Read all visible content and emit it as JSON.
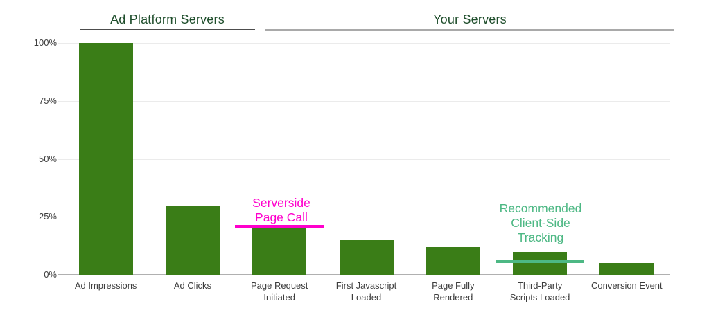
{
  "chart_data": {
    "type": "bar",
    "title": "",
    "unit": "%",
    "groups": [
      {
        "label": "Ad Platform Servers",
        "bar_indexes": [
          0,
          1
        ]
      },
      {
        "label": "Your Servers",
        "bar_indexes": [
          2,
          3,
          4,
          5,
          6
        ]
      }
    ],
    "categories": [
      "Ad Impressions",
      "Ad Clicks",
      "Page Request\nInitiated",
      "First Javascript\nLoaded",
      "Page Fully\nRendered",
      "Third-Party\nScripts Loaded",
      "Conversion Event"
    ],
    "values": [
      100,
      30,
      20,
      15,
      12,
      10,
      5
    ],
    "ylim": [
      0,
      100
    ],
    "yticks": [
      0,
      25,
      50,
      75,
      100
    ],
    "ytick_labels": [
      "0%",
      "25%",
      "50%",
      "75%",
      "100%"
    ],
    "grid": true,
    "legend": "none",
    "bar_color": "#3a7d17",
    "annotations": [
      {
        "text": "Serverside\nPage Call",
        "color": "#ff00cc",
        "line_value_pct": 20.8,
        "bar_index": 2,
        "line_half_width": 64
      },
      {
        "text": "Recommended\nClient-Side\nTracking",
        "color": "#4db884",
        "line_value_pct": 5.8,
        "bar_index": 5,
        "line_half_width": 64
      }
    ],
    "colors": {
      "heading": "#1f4e2c",
      "group1_underline": "#4d4d4d",
      "group2_underline": "#a9a9a9",
      "grid": "#ebebeb",
      "axis": "#b0b0b0",
      "tick_label": "#3d3d3d"
    }
  }
}
